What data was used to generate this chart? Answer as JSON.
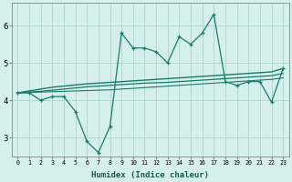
{
  "xlabel": "Humidex (Indice chaleur)",
  "x": [
    0,
    1,
    2,
    3,
    4,
    5,
    6,
    7,
    8,
    9,
    10,
    11,
    12,
    13,
    14,
    15,
    16,
    17,
    18,
    19,
    20,
    21,
    22,
    23
  ],
  "y_main": [
    4.2,
    4.2,
    4.0,
    4.1,
    4.1,
    3.7,
    2.9,
    2.6,
    3.3,
    5.8,
    5.4,
    5.4,
    5.3,
    5.0,
    5.7,
    5.5,
    5.8,
    6.3,
    4.5,
    4.4,
    4.5,
    4.5,
    3.95,
    4.85
  ],
  "y_trend1": [
    4.2,
    4.25,
    4.3,
    4.35,
    4.38,
    4.41,
    4.44,
    4.46,
    4.48,
    4.5,
    4.52,
    4.54,
    4.56,
    4.58,
    4.6,
    4.62,
    4.64,
    4.66,
    4.68,
    4.7,
    4.72,
    4.74,
    4.76,
    4.85
  ],
  "y_trend2": [
    4.2,
    4.22,
    4.24,
    4.27,
    4.3,
    4.33,
    4.36,
    4.38,
    4.4,
    4.42,
    4.44,
    4.46,
    4.47,
    4.48,
    4.5,
    4.52,
    4.54,
    4.56,
    4.58,
    4.6,
    4.62,
    4.64,
    4.66,
    4.72
  ],
  "y_trend3": [
    4.2,
    4.21,
    4.22,
    4.23,
    4.24,
    4.25,
    4.26,
    4.27,
    4.28,
    4.3,
    4.32,
    4.34,
    4.36,
    4.38,
    4.4,
    4.42,
    4.44,
    4.46,
    4.48,
    4.5,
    4.52,
    4.54,
    4.56,
    4.6
  ],
  "line_color": "#1a7a6e",
  "bg_color": "#d4efec",
  "grid_color": "#b0d4d0",
  "ylim": [
    2.5,
    6.6
  ],
  "xlim": [
    -0.5,
    23.5
  ],
  "yticks": [
    3,
    4,
    5,
    6
  ],
  "xticks": [
    0,
    1,
    2,
    3,
    4,
    5,
    6,
    7,
    8,
    9,
    10,
    11,
    12,
    13,
    14,
    15,
    16,
    17,
    18,
    19,
    20,
    21,
    22,
    23
  ]
}
